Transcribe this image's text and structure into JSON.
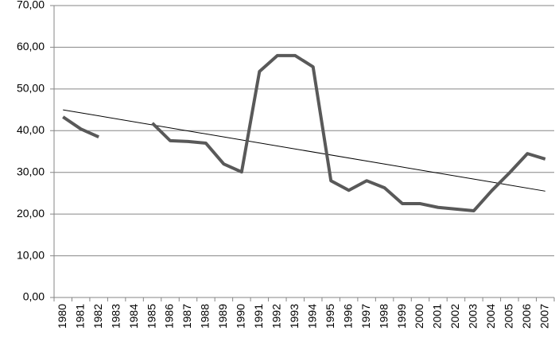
{
  "chart_data": {
    "type": "line",
    "categories": [
      "1980",
      "1981",
      "1982",
      "1983",
      "1984",
      "1985",
      "1986",
      "1987",
      "1988",
      "1989",
      "1990",
      "1991",
      "1992",
      "1993",
      "1994",
      "1995",
      "1996",
      "1997",
      "1998",
      "1999",
      "2000",
      "2001",
      "2002",
      "2003",
      "2004",
      "2005",
      "2006",
      "2007"
    ],
    "series": [
      {
        "color": "#595959",
        "values": [
          43.3,
          40.4,
          38.5,
          null,
          null,
          41.8,
          37.6,
          37.4,
          37.0,
          32.0,
          30.1,
          54.2,
          58.0,
          58.0,
          55.3,
          28.0,
          25.7,
          28.0,
          26.3,
          22.5,
          22.5,
          21.6,
          21.2,
          20.8,
          25.6,
          29.9,
          34.5,
          33.2
        ]
      }
    ],
    "trendline": {
      "color": "#000000",
      "values": [
        45.0,
        25.5
      ]
    },
    "ylim": [
      0,
      70
    ],
    "yticks": [
      {
        "value": 0,
        "label": "0,00"
      },
      {
        "value": 10,
        "label": "10,00"
      },
      {
        "value": 20,
        "label": "20,00"
      },
      {
        "value": 30,
        "label": "30,00"
      },
      {
        "value": 40,
        "label": "40,00"
      },
      {
        "value": 50,
        "label": "50,00"
      },
      {
        "value": 60,
        "label": "60,00"
      },
      {
        "value": 70,
        "label": "70,00"
      }
    ],
    "grid": true
  }
}
